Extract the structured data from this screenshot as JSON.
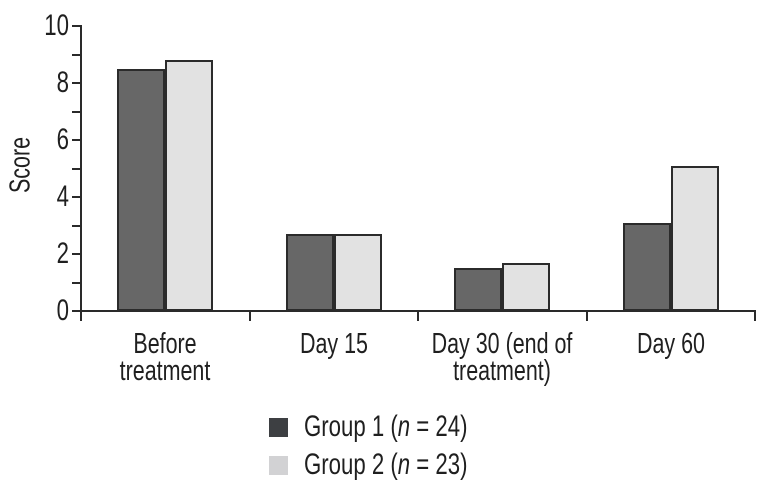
{
  "chart_data": {
    "type": "bar",
    "title": "",
    "xlabel": "",
    "ylabel": "Score",
    "ylim": [
      0,
      10
    ],
    "ytick_step": 2,
    "ytick_minor_step": 1,
    "ytick_labels": [
      "0",
      "2",
      "4",
      "6",
      "8",
      "10"
    ],
    "grid": false,
    "legend_position": "bottom",
    "categories": [
      "Before\ntreatment",
      "Day 15",
      "Day 30 (end of\ntreatment)",
      "Day 60"
    ],
    "series": [
      {
        "name": "Group 1 (n = 24)",
        "values": [
          8.5,
          2.7,
          1.5,
          3.1
        ],
        "color": "#676767"
      },
      {
        "name": "Group 2 (n = 23)",
        "values": [
          8.8,
          2.7,
          1.7,
          5.1
        ],
        "color": "#e2e2e2"
      }
    ],
    "bar_border_color": "#2b2b2b",
    "axis_color": "#2a2a2a",
    "text_color": "#1f1f1f"
  },
  "legend": {
    "items": [
      {
        "prefix": "Group 1 (",
        "variable": "n",
        "suffix": " = 24)",
        "swatch_color": "#3d3f42"
      },
      {
        "prefix": "Group 2 (",
        "variable": "n",
        "suffix": " = 23)",
        "swatch_color": "#d2d2d4"
      }
    ]
  }
}
